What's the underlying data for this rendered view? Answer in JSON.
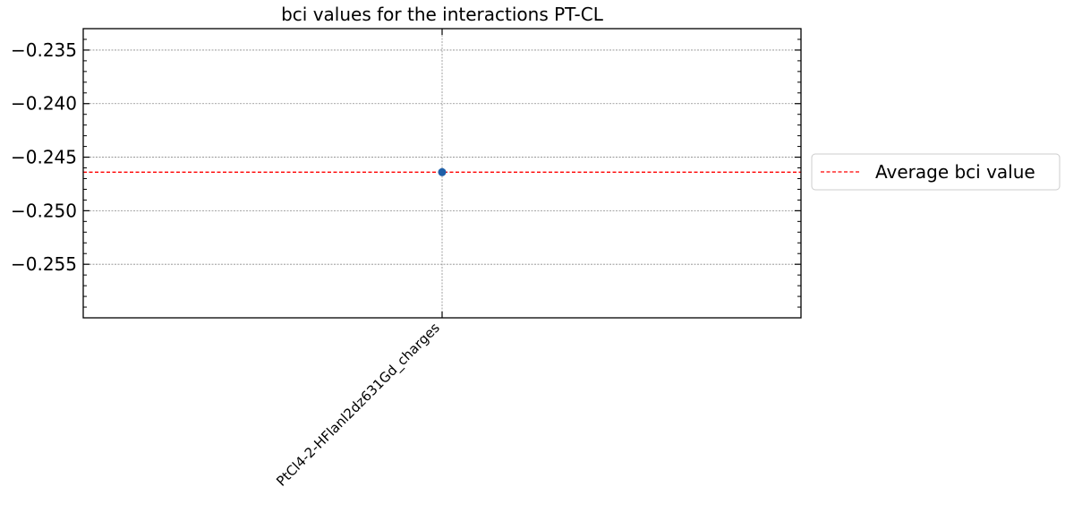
{
  "chart_data": {
    "type": "scatter",
    "title": "bci values for the interactions PT-CL",
    "xlabel": "",
    "ylabel": "",
    "categories": [
      "PtCl4-2-HFlanl2dz631Gd_charges"
    ],
    "series": [
      {
        "values": [
          -0.2464
        ],
        "color": "#1f5fa8",
        "marker": "circle"
      }
    ],
    "reference_lines": [
      {
        "name": "Average bci value",
        "value": -0.2464,
        "color": "#ff0000",
        "style": "dashed"
      }
    ],
    "ylim": [
      -0.26,
      -0.233
    ],
    "yticks": [
      -0.235,
      -0.24,
      -0.245,
      -0.25,
      -0.255
    ],
    "ytick_labels": [
      "−0.235",
      "−0.240",
      "−0.245",
      "−0.250",
      "−0.255"
    ],
    "grid": true,
    "legend": {
      "placement": "outside-right",
      "entries": [
        "Average bci value"
      ]
    }
  }
}
